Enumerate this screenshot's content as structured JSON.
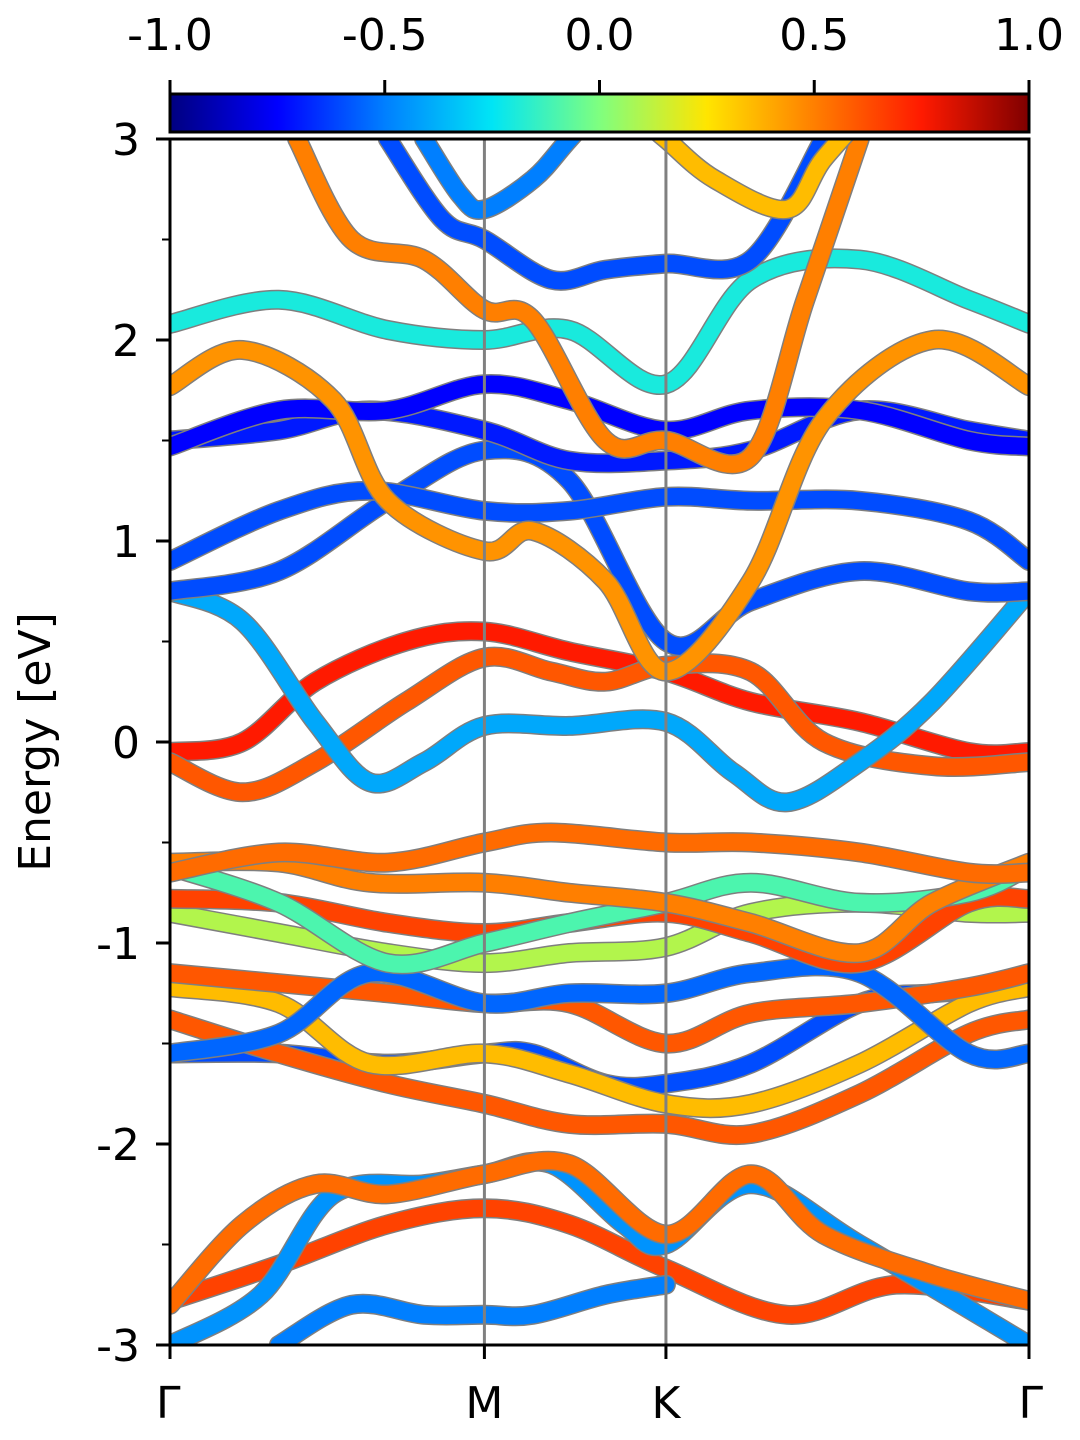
{
  "chart_data": {
    "type": "line",
    "title": "",
    "xlabel": "",
    "ylabel": "Energy [eV]",
    "ylim": [
      -3,
      3
    ],
    "y_ticks": [
      {
        "value": -3,
        "label": "-3"
      },
      {
        "value": -2,
        "label": "-2"
      },
      {
        "value": -1,
        "label": "-1"
      },
      {
        "value": 0,
        "label": "0"
      },
      {
        "value": 1,
        "label": "1"
      },
      {
        "value": 2,
        "label": "2"
      },
      {
        "value": 3,
        "label": "3"
      }
    ],
    "y_minor_ticks": [
      -2.5,
      -1.5,
      -0.5,
      0.5,
      1.5,
      2.5
    ],
    "k_path": {
      "labels": [
        "Γ",
        "M",
        "K",
        "Γ"
      ],
      "positions": [
        0,
        0.866,
        1.366,
        2.366
      ]
    },
    "grid": false,
    "legend": "none",
    "colorbar": {
      "position": "top",
      "range": [
        -1.0,
        1.0
      ],
      "colormap": "jet",
      "ticks": [
        {
          "value": -1.0,
          "label": "-1.0"
        },
        {
          "value": -0.5,
          "label": "-0.5"
        },
        {
          "value": 0.0,
          "label": "0.0"
        },
        {
          "value": 0.5,
          "label": "0.5"
        },
        {
          "value": 1.0,
          "label": "1.0"
        }
      ]
    },
    "colors": {
      "jet": [
        "#00007f",
        "#0000ff",
        "#007fff",
        "#00e5f5",
        "#7fff7f",
        "#ffe500",
        "#ff7f00",
        "#ff1a00",
        "#7f0000"
      ],
      "vline": "#808080",
      "band_edge": "#7f7f7f"
    },
    "bands": [
      {
        "k": [
          0,
          0.3,
          0.6,
          0.866,
          1.1,
          1.366,
          1.7,
          2.0,
          2.366
        ],
        "E": [
          -2.78,
          -2.6,
          -2.4,
          -2.32,
          -2.4,
          -2.62,
          -2.85,
          -2.7,
          -2.78
        ],
        "w": 0.65
      },
      {
        "k": [
          0,
          0.25,
          0.45,
          0.7,
          0.866,
          1.05,
          1.25,
          1.366,
          1.6,
          1.9,
          2.366
        ],
        "E": [
          -3.0,
          -2.75,
          -2.25,
          -2.2,
          -2.15,
          -2.1,
          -2.4,
          -2.5,
          -2.2,
          -2.5,
          -3.0
        ],
        "w": -0.45
      },
      {
        "k": [
          0,
          0.2,
          0.4,
          0.6,
          0.866,
          1.1,
          1.366,
          1.6,
          1.8,
          2.1,
          2.366
        ],
        "E": [
          -2.8,
          -2.4,
          -2.2,
          -2.25,
          -2.15,
          -2.1,
          -2.45,
          -2.15,
          -2.45,
          -2.65,
          -2.78
        ],
        "w": 0.55
      },
      {
        "k": [
          0.3,
          0.5,
          0.7,
          0.866,
          1.0,
          1.2,
          1.366
        ],
        "E": [
          -3.0,
          -2.8,
          -2.85,
          -2.85,
          -2.85,
          -2.75,
          -2.7
        ],
        "w": -0.5
      },
      {
        "k": [
          0,
          0.3,
          0.6,
          0.866,
          1.0,
          1.2,
          1.366,
          1.6,
          1.9,
          2.1,
          2.366
        ],
        "E": [
          -1.55,
          -1.55,
          -1.6,
          -1.55,
          -1.55,
          -1.7,
          -1.7,
          -1.6,
          -1.3,
          -1.25,
          -1.22
        ],
        "w": -0.6
      },
      {
        "k": [
          0,
          0.3,
          0.6,
          0.866,
          1.1,
          1.366,
          1.6,
          1.9,
          2.2,
          2.366
        ],
        "E": [
          -1.38,
          -1.55,
          -1.7,
          -1.8,
          -1.9,
          -1.9,
          -1.95,
          -1.75,
          -1.45,
          -1.38
        ],
        "w": 0.6
      },
      {
        "k": [
          0,
          0.3,
          0.55,
          0.866,
          1.1,
          1.366,
          1.6,
          1.9,
          2.2,
          2.366
        ],
        "E": [
          -1.22,
          -1.3,
          -1.6,
          -1.55,
          -1.65,
          -1.8,
          -1.8,
          -1.6,
          -1.3,
          -1.22
        ],
        "w": 0.35
      },
      {
        "k": [
          0,
          0.3,
          0.6,
          0.866,
          1.1,
          1.366,
          1.6,
          1.9,
          2.2,
          2.366
        ],
        "E": [
          -1.15,
          -1.2,
          -1.25,
          -1.3,
          -1.3,
          -1.5,
          -1.35,
          -1.3,
          -1.22,
          -1.15
        ],
        "w": 0.6
      },
      {
        "k": [
          0,
          0.3,
          0.55,
          0.866,
          1.1,
          1.366,
          1.6,
          1.9,
          2.2,
          2.366
        ],
        "E": [
          -1.55,
          -1.45,
          -1.15,
          -1.3,
          -1.25,
          -1.25,
          -1.15,
          -1.15,
          -1.55,
          -1.55
        ],
        "w": -0.55
      },
      {
        "k": [
          0,
          0.3,
          0.6,
          0.866,
          1.1,
          1.366,
          1.6,
          1.9,
          2.2,
          2.366
        ],
        "E": [
          -0.85,
          -0.95,
          -1.05,
          -1.1,
          -1.05,
          -1.02,
          -0.85,
          -0.8,
          -0.85,
          -0.85
        ],
        "w": 0.1
      },
      {
        "k": [
          0,
          0.3,
          0.6,
          0.866,
          1.1,
          1.366,
          1.6,
          1.9,
          2.2,
          2.366
        ],
        "E": [
          -0.78,
          -0.8,
          -0.9,
          -0.95,
          -0.9,
          -0.85,
          -0.95,
          -1.1,
          -0.8,
          -0.78
        ],
        "w": 0.65
      },
      {
        "k": [
          0,
          0.3,
          0.6,
          0.866,
          1.1,
          1.366,
          1.6,
          1.9,
          2.2,
          2.366
        ],
        "E": [
          -0.62,
          -0.8,
          -1.1,
          -1.0,
          -0.9,
          -0.8,
          -0.7,
          -0.8,
          -0.75,
          -0.62
        ],
        "w": -0.1
      },
      {
        "k": [
          0,
          0.3,
          0.55,
          0.866,
          1.1,
          1.366,
          1.6,
          1.9,
          2.1,
          2.366
        ],
        "E": [
          -0.6,
          -0.6,
          -0.7,
          -0.7,
          -0.75,
          -0.8,
          -0.9,
          -1.05,
          -0.8,
          -0.6
        ],
        "w": 0.5
      },
      {
        "k": [
          0,
          0.3,
          0.6,
          0.866,
          1.05,
          1.366,
          1.6,
          1.9,
          2.2,
          2.366
        ],
        "E": [
          -0.65,
          -0.55,
          -0.6,
          -0.5,
          -0.45,
          -0.5,
          -0.5,
          -0.55,
          -0.65,
          -0.65
        ],
        "w": 0.55
      },
      {
        "k": [
          0,
          0.2,
          0.4,
          0.65,
          0.866,
          1.1,
          1.366,
          1.6,
          1.9,
          2.2,
          2.366
        ],
        "E": [
          -0.05,
          0.0,
          0.3,
          0.5,
          0.55,
          0.45,
          0.35,
          0.2,
          0.1,
          -0.05,
          -0.05
        ],
        "w": 0.75
      },
      {
        "k": [
          0,
          0.2,
          0.4,
          0.65,
          0.866,
          1.05,
          1.2,
          1.366,
          1.6,
          1.8,
          2.1,
          2.366
        ],
        "E": [
          -0.1,
          -0.25,
          -0.1,
          0.2,
          0.42,
          0.35,
          0.3,
          0.38,
          0.35,
          0.0,
          -0.12,
          -0.1
        ],
        "w": 0.6
      },
      {
        "k": [
          0,
          0.2,
          0.4,
          0.55,
          0.7,
          0.866,
          1.1,
          1.366,
          1.55,
          1.7,
          1.9,
          2.1,
          2.366
        ],
        "E": [
          0.75,
          0.6,
          0.1,
          -0.2,
          -0.1,
          0.08,
          0.08,
          0.1,
          -0.15,
          -0.3,
          -0.1,
          0.2,
          0.75
        ],
        "w": -0.4
      },
      {
        "k": [
          0,
          0.3,
          0.6,
          0.866,
          1.1,
          1.366,
          1.6,
          1.9,
          2.2,
          2.366
        ],
        "E": [
          0.75,
          0.85,
          1.2,
          1.45,
          1.3,
          0.5,
          0.7,
          0.85,
          0.75,
          0.75
        ],
        "w": -0.6
      },
      {
        "k": [
          0,
          0.3,
          0.55,
          0.866,
          1.1,
          1.366,
          1.6,
          1.9,
          2.2,
          2.366
        ],
        "E": [
          0.9,
          1.15,
          1.25,
          1.15,
          1.15,
          1.22,
          1.2,
          1.2,
          1.1,
          0.9
        ],
        "w": -0.6
      },
      {
        "k": [
          0,
          0.3,
          0.55,
          0.866,
          1.1,
          1.366,
          1.6,
          1.9,
          2.2,
          2.366
        ],
        "E": [
          1.5,
          1.55,
          1.65,
          1.55,
          1.4,
          1.4,
          1.45,
          1.65,
          1.55,
          1.5
        ],
        "w": -0.7
      },
      {
        "k": [
          0,
          0.3,
          0.6,
          0.866,
          1.1,
          1.366,
          1.6,
          1.9,
          2.2,
          2.366
        ],
        "E": [
          1.47,
          1.65,
          1.65,
          1.78,
          1.7,
          1.55,
          1.65,
          1.65,
          1.5,
          1.47
        ],
        "w": -0.75
      },
      {
        "k": [
          0,
          0.2,
          0.45,
          0.6,
          0.866,
          1.0,
          1.2,
          1.366,
          1.6,
          1.8,
          2.1,
          2.366
        ],
        "E": [
          1.77,
          1.95,
          1.7,
          1.2,
          0.95,
          1.05,
          0.8,
          0.35,
          0.8,
          1.6,
          2.0,
          1.77
        ],
        "w": 0.45
      },
      {
        "k": [
          0,
          0.3,
          0.6,
          0.866,
          1.1,
          1.366,
          1.6,
          1.9,
          2.2,
          2.366
        ],
        "E": [
          2.08,
          2.2,
          2.05,
          2.0,
          2.05,
          1.78,
          2.3,
          2.4,
          2.2,
          2.08
        ],
        "w": -0.2
      },
      {
        "k": [
          0.35,
          0.5,
          0.7,
          0.866,
          1.0,
          1.2,
          1.366,
          1.6,
          1.75,
          1.9
        ],
        "E": [
          3.0,
          2.5,
          2.4,
          2.15,
          2.1,
          1.5,
          1.5,
          1.42,
          2.2,
          3.0
        ],
        "w": 0.5
      },
      {
        "k": [
          0.6,
          0.75,
          0.866,
          1.05,
          1.2,
          1.366,
          1.6,
          1.8
        ],
        "E": [
          3.0,
          2.6,
          2.5,
          2.3,
          2.35,
          2.38,
          2.4,
          3.0
        ],
        "w": -0.6
      },
      {
        "k": [
          0.7,
          0.8,
          0.866,
          1.0,
          1.1,
          1.25
        ],
        "E": [
          3.0,
          2.72,
          2.65,
          2.8,
          3.0,
          3.3
        ],
        "w": -0.5
      },
      {
        "k": [
          1.3,
          1.366,
          1.5,
          1.7,
          1.8,
          1.95
        ],
        "E": [
          3.1,
          3.0,
          2.8,
          2.65,
          2.9,
          3.2
        ],
        "w": 0.35
      }
    ]
  }
}
